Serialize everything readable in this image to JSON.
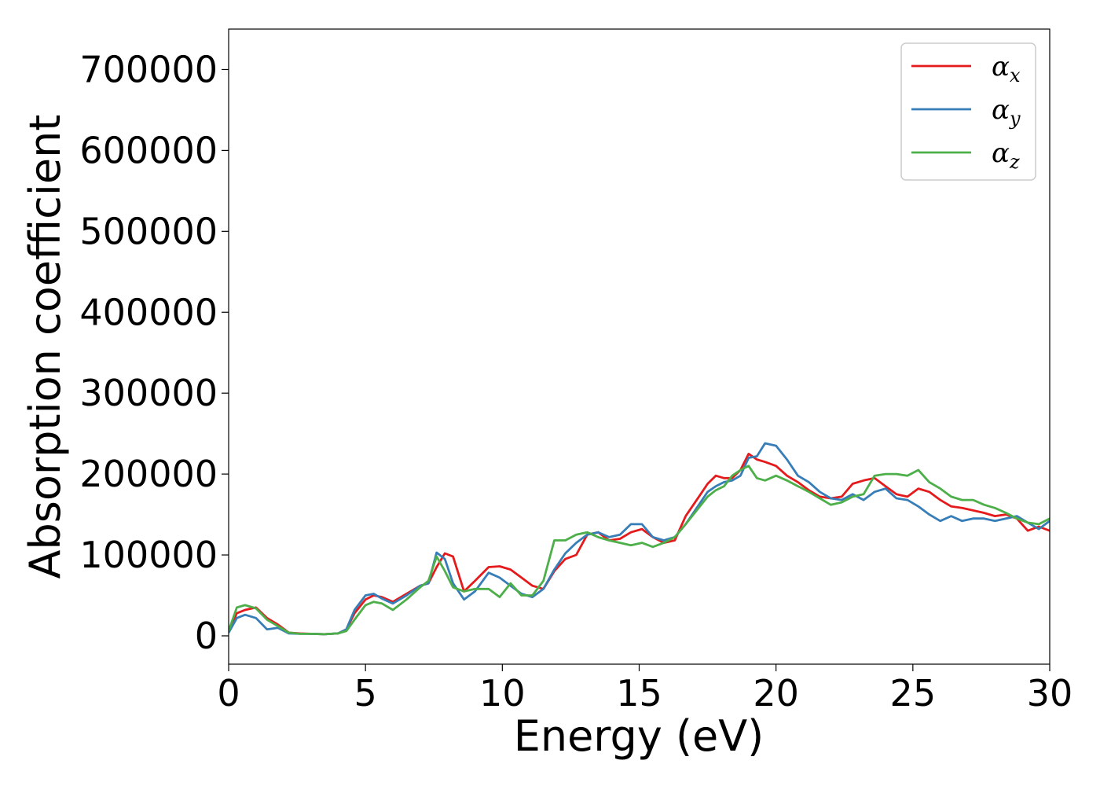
{
  "chart_data": {
    "type": "line",
    "title": "",
    "xlabel": "Energy (eV)",
    "ylabel": "Absorption coefficient",
    "xlim": [
      0,
      30
    ],
    "ylim": [
      -35000,
      750000
    ],
    "xticks": [
      0,
      5,
      10,
      15,
      20,
      25,
      30
    ],
    "yticks": [
      0,
      100000,
      200000,
      300000,
      400000,
      500000,
      600000,
      700000
    ],
    "grid": false,
    "legend_position": "top-right",
    "series": [
      {
        "name": "α_x",
        "label_base": "α",
        "label_sub": "x",
        "color": "#e41a1c",
        "x": [
          0,
          0.3,
          0.6,
          1.0,
          1.4,
          1.8,
          2.2,
          2.6,
          3.0,
          3.5,
          4.0,
          4.3,
          4.6,
          5.0,
          5.3,
          5.6,
          6.0,
          6.5,
          7.0,
          7.3,
          7.6,
          7.9,
          8.2,
          8.6,
          9.0,
          9.5,
          9.9,
          10.3,
          10.7,
          11.1,
          11.5,
          11.9,
          12.3,
          12.7,
          13.1,
          13.5,
          13.9,
          14.3,
          14.7,
          15.1,
          15.5,
          15.9,
          16.3,
          16.7,
          17.1,
          17.5,
          17.8,
          18.1,
          18.4,
          18.7,
          19.0,
          19.3,
          19.6,
          20.0,
          20.4,
          20.8,
          21.2,
          21.6,
          22.0,
          22.4,
          22.8,
          23.2,
          23.6,
          24.0,
          24.4,
          24.8,
          25.2,
          25.6,
          26.0,
          26.4,
          26.8,
          27.2,
          27.6,
          28.0,
          28.4,
          28.8,
          29.2,
          29.6,
          30.0
        ],
        "y": [
          5000,
          28000,
          32000,
          35000,
          22000,
          14000,
          4000,
          3000,
          2500,
          2000,
          3000,
          8000,
          28000,
          45000,
          50000,
          48000,
          42000,
          52000,
          62000,
          65000,
          85000,
          102000,
          98000,
          55000,
          68000,
          85000,
          86000,
          82000,
          72000,
          62000,
          58000,
          80000,
          95000,
          100000,
          125000,
          128000,
          118000,
          120000,
          128000,
          132000,
          122000,
          115000,
          118000,
          148000,
          168000,
          188000,
          198000,
          195000,
          195000,
          205000,
          225000,
          218000,
          215000,
          210000,
          198000,
          190000,
          180000,
          172000,
          170000,
          172000,
          188000,
          192000,
          195000,
          185000,
          175000,
          172000,
          182000,
          178000,
          168000,
          160000,
          158000,
          155000,
          152000,
          148000,
          150000,
          145000,
          130000,
          135000,
          130000
        ]
      },
      {
        "name": "α_y",
        "label_base": "α",
        "label_sub": "y",
        "color": "#377eb8",
        "x": [
          0,
          0.3,
          0.6,
          1.0,
          1.4,
          1.8,
          2.2,
          2.6,
          3.0,
          3.5,
          4.0,
          4.3,
          4.6,
          5.0,
          5.3,
          5.6,
          6.0,
          6.5,
          7.0,
          7.3,
          7.6,
          7.9,
          8.2,
          8.6,
          9.0,
          9.5,
          9.9,
          10.3,
          10.7,
          11.1,
          11.5,
          11.9,
          12.3,
          12.7,
          13.1,
          13.5,
          13.9,
          14.3,
          14.7,
          15.1,
          15.5,
          15.9,
          16.3,
          16.7,
          17.1,
          17.5,
          17.8,
          18.1,
          18.4,
          18.7,
          19.0,
          19.3,
          19.6,
          20.0,
          20.4,
          20.8,
          21.2,
          21.6,
          22.0,
          22.4,
          22.8,
          23.2,
          23.6,
          24.0,
          24.4,
          24.8,
          25.2,
          25.6,
          26.0,
          26.4,
          26.8,
          27.2,
          27.6,
          28.0,
          28.4,
          28.8,
          29.2,
          29.6,
          30.0
        ],
        "y": [
          4000,
          22000,
          26000,
          22000,
          8000,
          10000,
          3000,
          2500,
          2500,
          2000,
          3000,
          8000,
          32000,
          50000,
          52000,
          46000,
          40000,
          50000,
          62000,
          65000,
          103000,
          95000,
          65000,
          45000,
          55000,
          78000,
          72000,
          62000,
          52000,
          48000,
          58000,
          82000,
          102000,
          115000,
          125000,
          128000,
          122000,
          125000,
          138000,
          138000,
          122000,
          118000,
          122000,
          138000,
          158000,
          178000,
          185000,
          190000,
          192000,
          198000,
          220000,
          222000,
          238000,
          235000,
          218000,
          198000,
          190000,
          178000,
          170000,
          168000,
          175000,
          168000,
          178000,
          182000,
          170000,
          168000,
          160000,
          150000,
          142000,
          148000,
          142000,
          145000,
          145000,
          142000,
          145000,
          148000,
          140000,
          132000,
          142000
        ]
      },
      {
        "name": "α_z",
        "label_base": "α",
        "label_sub": "z",
        "color": "#4daf4a",
        "x": [
          0,
          0.3,
          0.6,
          1.0,
          1.4,
          1.8,
          2.2,
          2.6,
          3.0,
          3.5,
          4.0,
          4.3,
          4.6,
          5.0,
          5.3,
          5.6,
          6.0,
          6.5,
          7.0,
          7.3,
          7.6,
          7.9,
          8.2,
          8.6,
          9.0,
          9.5,
          9.9,
          10.3,
          10.7,
          11.1,
          11.5,
          11.9,
          12.3,
          12.7,
          13.1,
          13.5,
          13.9,
          14.3,
          14.7,
          15.1,
          15.5,
          15.9,
          16.3,
          16.7,
          17.1,
          17.5,
          17.8,
          18.1,
          18.4,
          18.7,
          19.0,
          19.3,
          19.6,
          20.0,
          20.4,
          20.8,
          21.2,
          21.6,
          22.0,
          22.4,
          22.8,
          23.2,
          23.6,
          24.0,
          24.4,
          24.8,
          25.2,
          25.6,
          26.0,
          26.4,
          26.8,
          27.2,
          27.6,
          28.0,
          28.4,
          28.8,
          29.2,
          29.6,
          30.0
        ],
        "y": [
          6000,
          35000,
          38000,
          34000,
          20000,
          12000,
          4000,
          2500,
          2500,
          2000,
          3000,
          6000,
          20000,
          38000,
          42000,
          40000,
          32000,
          45000,
          60000,
          68000,
          98000,
          80000,
          60000,
          55000,
          58000,
          58000,
          48000,
          65000,
          50000,
          50000,
          68000,
          118000,
          118000,
          125000,
          128000,
          122000,
          118000,
          115000,
          112000,
          115000,
          110000,
          115000,
          122000,
          138000,
          155000,
          172000,
          180000,
          185000,
          198000,
          205000,
          210000,
          195000,
          192000,
          198000,
          192000,
          185000,
          178000,
          170000,
          162000,
          165000,
          172000,
          175000,
          198000,
          200000,
          200000,
          198000,
          205000,
          190000,
          182000,
          172000,
          168000,
          168000,
          162000,
          158000,
          152000,
          145000,
          140000,
          138000,
          145000
        ]
      }
    ]
  }
}
